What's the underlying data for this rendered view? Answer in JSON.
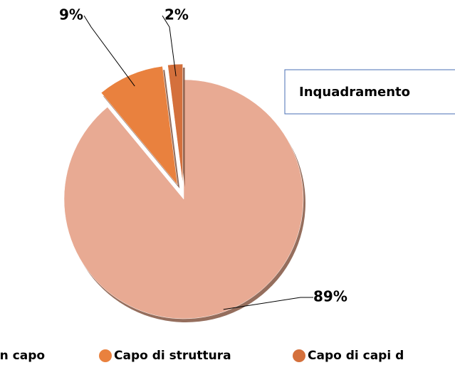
{
  "chart_data": {
    "type": "pie",
    "title": "Inquadramento",
    "categories": [
      "on capo",
      "Capo di struttura",
      "Capo di capi d"
    ],
    "values": [
      89,
      9,
      2
    ],
    "value_labels": [
      "89%",
      "9%",
      "2%"
    ],
    "colors": [
      "#E8AA93",
      "#E9813E",
      "#D4703C"
    ]
  }
}
